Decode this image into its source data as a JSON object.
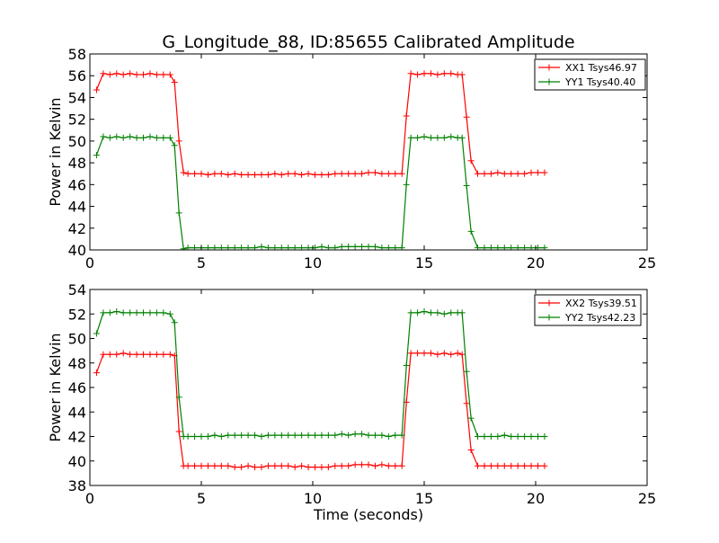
{
  "chart_data": [
    {
      "type": "line",
      "title": "G_Longitude_88, ID:85655 Calibrated Amplitude",
      "xlabel": "",
      "ylabel": "Power in Kelvin",
      "xlim": [
        0,
        25
      ],
      "ylim": [
        40,
        58
      ],
      "xticks": [
        0,
        5,
        10,
        15,
        20,
        25
      ],
      "yticks": [
        40,
        42,
        44,
        46,
        48,
        50,
        52,
        54,
        56,
        58
      ],
      "legend_position": "top-right",
      "grid": false,
      "x": [
        0.3,
        0.6,
        0.9,
        1.2,
        1.5,
        1.8,
        2.1,
        2.4,
        2.7,
        3.0,
        3.3,
        3.6,
        3.8,
        4.0,
        4.2,
        4.4,
        4.7,
        5.0,
        5.3,
        5.6,
        5.9,
        6.2,
        6.5,
        6.8,
        7.1,
        7.4,
        7.7,
        8.0,
        8.3,
        8.6,
        8.9,
        9.2,
        9.5,
        9.8,
        10.1,
        10.4,
        10.7,
        11.0,
        11.3,
        11.6,
        11.9,
        12.2,
        12.5,
        12.8,
        13.1,
        13.4,
        13.7,
        14.0,
        14.2,
        14.4,
        14.7,
        15.0,
        15.3,
        15.6,
        15.9,
        16.2,
        16.5,
        16.7,
        16.9,
        17.1,
        17.4,
        17.7,
        18.0,
        18.3,
        18.6,
        18.9,
        19.2,
        19.5,
        19.8,
        20.1,
        20.4
      ],
      "series": [
        {
          "name": "XX1 Tsys46.97",
          "color": "#ff0000",
          "values": [
            54.7,
            56.2,
            56.1,
            56.2,
            56.1,
            56.2,
            56.1,
            56.1,
            56.2,
            56.1,
            56.1,
            56.1,
            55.4,
            50.0,
            47.1,
            47.0,
            47.0,
            47.0,
            46.9,
            47.0,
            47.0,
            46.9,
            47.0,
            46.9,
            46.9,
            46.9,
            46.9,
            46.9,
            47.0,
            46.9,
            47.0,
            47.0,
            46.9,
            47.0,
            46.9,
            46.9,
            46.9,
            47.0,
            47.0,
            47.0,
            47.0,
            47.0,
            47.1,
            47.1,
            47.0,
            47.0,
            47.0,
            47.0,
            52.3,
            56.2,
            56.1,
            56.2,
            56.2,
            56.1,
            56.2,
            56.2,
            56.1,
            56.1,
            52.2,
            48.2,
            47.0,
            47.0,
            47.0,
            47.1,
            47.0,
            47.0,
            47.0,
            47.0,
            47.1,
            47.1,
            47.1
          ]
        },
        {
          "name": "YY1 Tsys40.40",
          "color": "#008000",
          "values": [
            48.7,
            50.4,
            50.3,
            50.4,
            50.3,
            50.4,
            50.3,
            50.3,
            50.4,
            50.3,
            50.3,
            50.3,
            49.6,
            43.4,
            40.1,
            40.2,
            40.2,
            40.2,
            40.2,
            40.2,
            40.2,
            40.2,
            40.2,
            40.2,
            40.2,
            40.2,
            40.3,
            40.2,
            40.2,
            40.2,
            40.2,
            40.2,
            40.2,
            40.2,
            40.2,
            40.3,
            40.2,
            40.2,
            40.3,
            40.3,
            40.3,
            40.3,
            40.3,
            40.3,
            40.2,
            40.2,
            40.2,
            40.2,
            46.0,
            50.3,
            50.3,
            50.4,
            50.3,
            50.3,
            50.3,
            50.4,
            50.3,
            50.3,
            45.9,
            41.7,
            40.2,
            40.2,
            40.2,
            40.2,
            40.2,
            40.2,
            40.2,
            40.2,
            40.2,
            40.2,
            40.2
          ]
        }
      ]
    },
    {
      "type": "line",
      "title": "",
      "xlabel": "Time (seconds)",
      "ylabel": "Power in Kelvin",
      "xlim": [
        0,
        25
      ],
      "ylim": [
        38,
        54
      ],
      "xticks": [
        0,
        5,
        10,
        15,
        20,
        25
      ],
      "yticks": [
        38,
        40,
        42,
        44,
        46,
        48,
        50,
        52,
        54
      ],
      "legend_position": "top-right",
      "grid": false,
      "x": [
        0.3,
        0.6,
        0.9,
        1.2,
        1.5,
        1.8,
        2.1,
        2.4,
        2.7,
        3.0,
        3.3,
        3.6,
        3.8,
        4.0,
        4.2,
        4.4,
        4.7,
        5.0,
        5.3,
        5.6,
        5.9,
        6.2,
        6.5,
        6.8,
        7.1,
        7.4,
        7.7,
        8.0,
        8.3,
        8.6,
        8.9,
        9.2,
        9.5,
        9.8,
        10.1,
        10.4,
        10.7,
        11.0,
        11.3,
        11.6,
        11.9,
        12.2,
        12.5,
        12.8,
        13.1,
        13.4,
        13.7,
        14.0,
        14.2,
        14.4,
        14.7,
        15.0,
        15.3,
        15.6,
        15.9,
        16.2,
        16.5,
        16.7,
        16.9,
        17.1,
        17.4,
        17.7,
        18.0,
        18.3,
        18.6,
        18.9,
        19.2,
        19.5,
        19.8,
        20.1,
        20.4
      ],
      "series": [
        {
          "name": "XX2 Tsys39.51",
          "color": "#ff0000",
          "values": [
            47.2,
            48.7,
            48.7,
            48.7,
            48.8,
            48.7,
            48.7,
            48.7,
            48.7,
            48.7,
            48.7,
            48.7,
            48.6,
            42.4,
            39.6,
            39.6,
            39.6,
            39.6,
            39.6,
            39.6,
            39.6,
            39.6,
            39.5,
            39.5,
            39.6,
            39.5,
            39.5,
            39.6,
            39.6,
            39.6,
            39.6,
            39.5,
            39.6,
            39.5,
            39.5,
            39.5,
            39.5,
            39.6,
            39.6,
            39.6,
            39.7,
            39.7,
            39.7,
            39.6,
            39.7,
            39.6,
            39.6,
            39.6,
            44.8,
            48.8,
            48.8,
            48.8,
            48.8,
            48.7,
            48.8,
            48.7,
            48.8,
            48.7,
            44.7,
            40.9,
            39.6,
            39.6,
            39.6,
            39.6,
            39.6,
            39.6,
            39.6,
            39.6,
            39.6,
            39.6,
            39.6
          ]
        },
        {
          "name": "YY2 Tsys42.23",
          "color": "#008000",
          "values": [
            50.4,
            52.1,
            52.1,
            52.2,
            52.1,
            52.1,
            52.1,
            52.1,
            52.1,
            52.1,
            52.1,
            52.0,
            51.3,
            45.2,
            42.0,
            42.0,
            42.0,
            42.0,
            42.0,
            42.1,
            42.0,
            42.1,
            42.1,
            42.1,
            42.1,
            42.1,
            42.0,
            42.1,
            42.1,
            42.1,
            42.1,
            42.1,
            42.1,
            42.1,
            42.1,
            42.1,
            42.1,
            42.1,
            42.2,
            42.1,
            42.2,
            42.2,
            42.1,
            42.1,
            42.1,
            42.0,
            42.1,
            42.1,
            47.8,
            52.1,
            52.1,
            52.2,
            52.1,
            52.1,
            52.0,
            52.1,
            52.1,
            52.1,
            47.3,
            43.5,
            42.0,
            42.0,
            42.0,
            42.0,
            42.1,
            42.0,
            42.0,
            42.0,
            42.0,
            42.0,
            42.0
          ]
        }
      ]
    }
  ]
}
